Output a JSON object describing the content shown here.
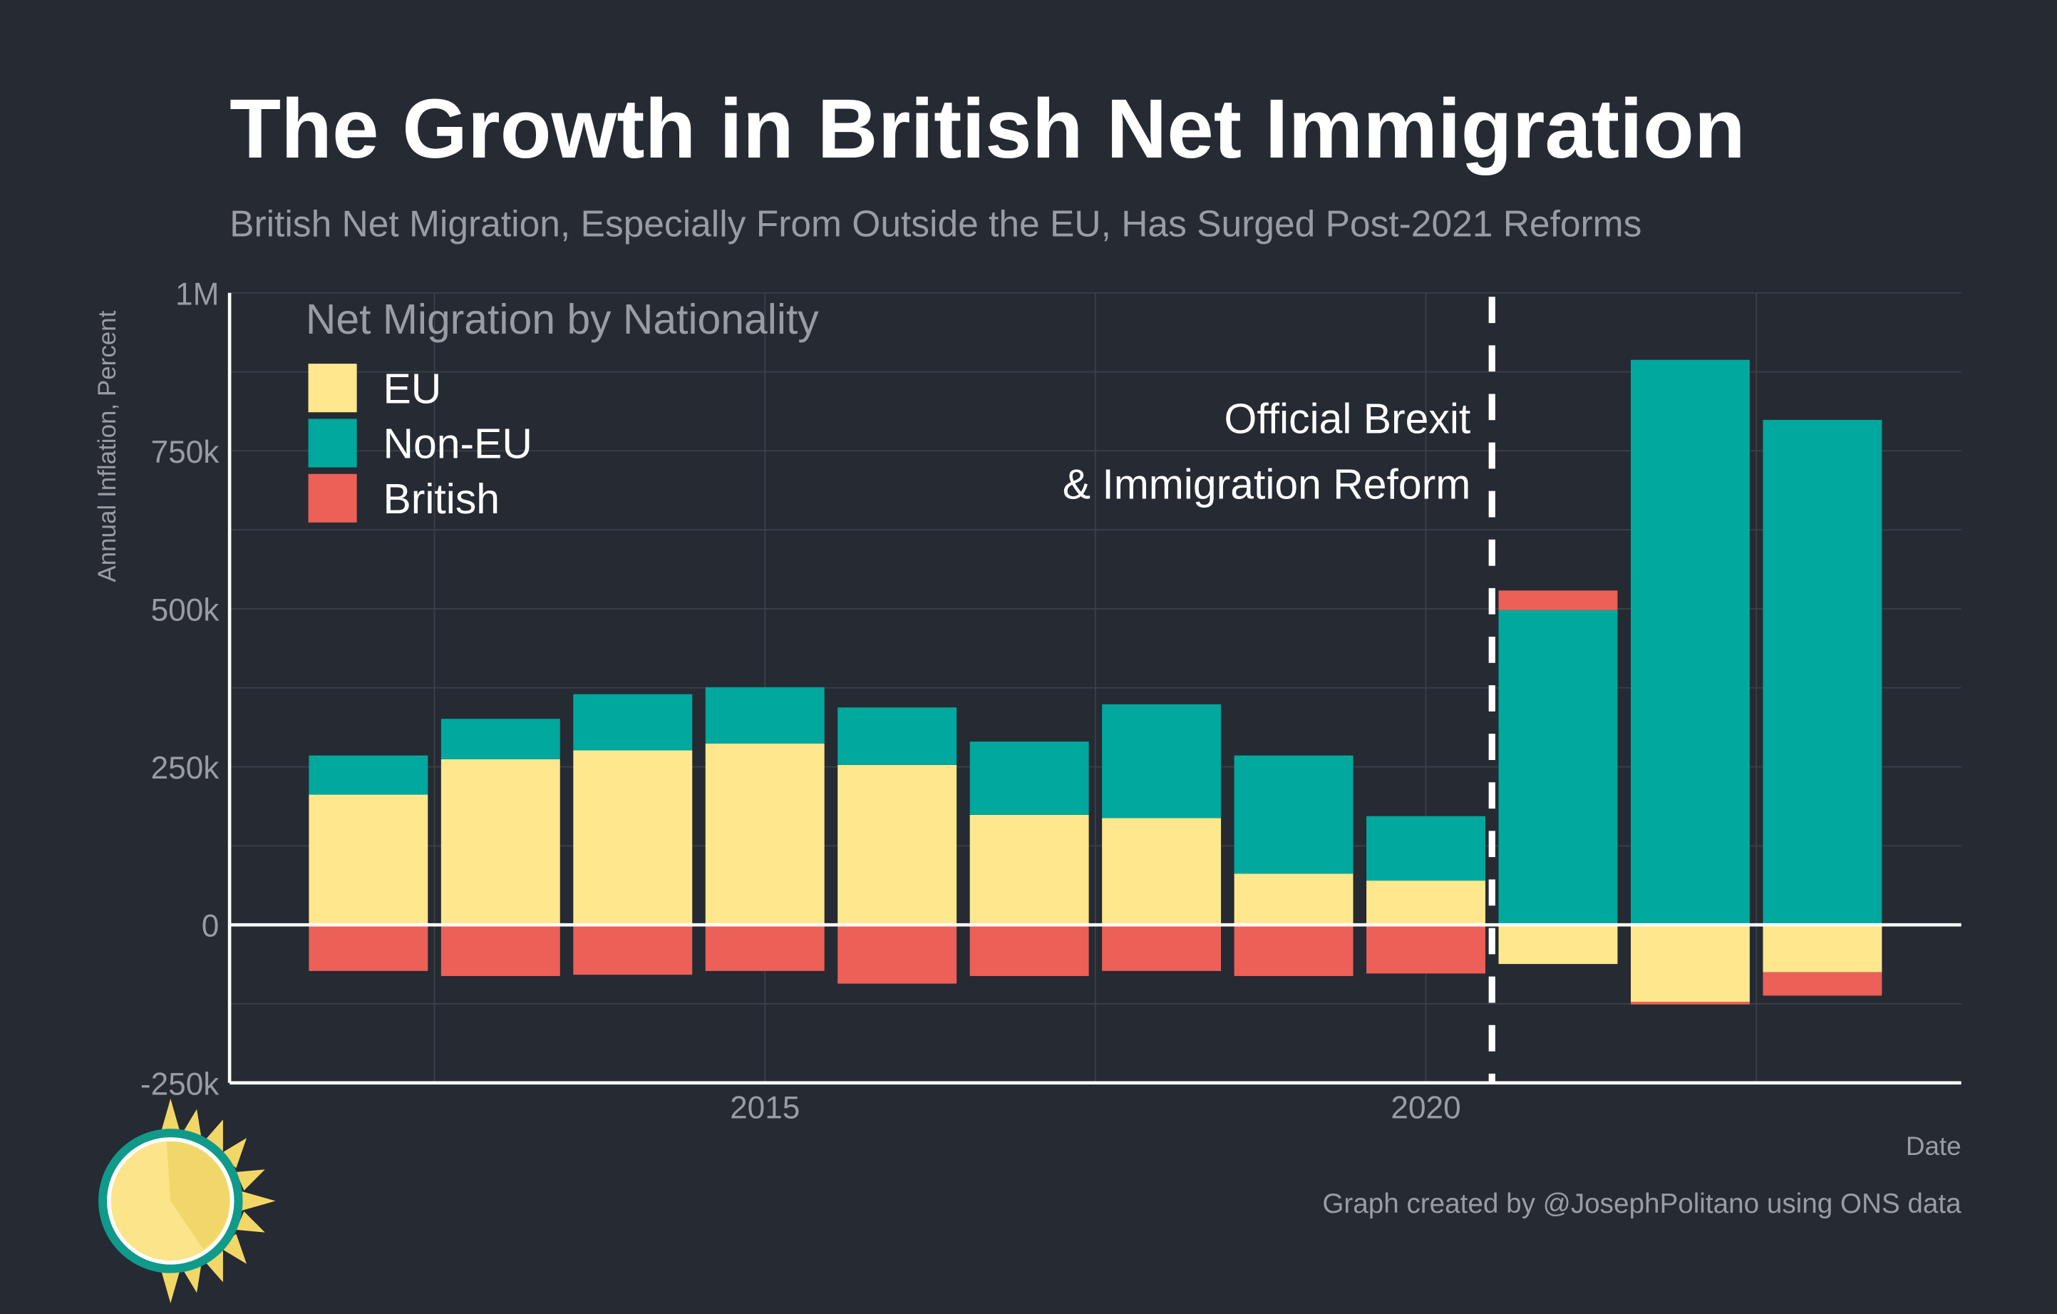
{
  "title": "The Growth in British Net Immigration",
  "subtitle": "British Net Migration, Especially From Outside the EU, Has Surged Post-2021 Reforms",
  "caption": "Graph created by @JosephPolitano using ONS data",
  "colors": {
    "background": "#252a33",
    "EU": "#fee78d",
    "Non-EU": "#00a89d",
    "British": "#ec6058",
    "grid": "#3b3f48",
    "axis": "#ffffff"
  },
  "chart_data": {
    "type": "bar",
    "stacked": true,
    "title": "The Growth in British Net Immigration",
    "subtitle": "British Net Migration, Especially From Outside the EU, Has Surged Post-2021 Reforms",
    "xlabel": "Date",
    "ylabel": "Annual Inflation, Percent",
    "legend_title": "Net Migration by Nationality",
    "legend_position": "top-left",
    "grid": true,
    "categories": [
      2012,
      2013,
      2014,
      2015,
      2016,
      2017,
      2018,
      2019,
      2020,
      2021,
      2022,
      2023
    ],
    "series": [
      {
        "name": "EU",
        "values": [
          206000,
          262000,
          276000,
          287000,
          253000,
          174000,
          169000,
          81000,
          70000,
          -62000,
          -122000,
          -75000
        ]
      },
      {
        "name": "Non-EU",
        "values": [
          62000,
          64000,
          89000,
          89000,
          91000,
          116000,
          180000,
          187000,
          102000,
          498000,
          894000,
          799000
        ]
      },
      {
        "name": "British",
        "values": [
          -73000,
          -81000,
          -79000,
          -73000,
          -93000,
          -81000,
          -73000,
          -81000,
          -77000,
          31000,
          -4000,
          -37000
        ]
      }
    ],
    "xlim": [
      2011,
      2024
    ],
    "ylim": [
      -250000,
      1000000
    ],
    "x_ticks": [
      {
        "value": 2015,
        "label": "2015"
      },
      {
        "value": 2020,
        "label": "2020"
      }
    ],
    "y_ticks": [
      {
        "value": -250000,
        "label": "-250k"
      },
      {
        "value": 0,
        "label": "0"
      },
      {
        "value": 250000,
        "label": "250k"
      },
      {
        "value": 500000,
        "label": "500k"
      },
      {
        "value": 750000,
        "label": "750k"
      },
      {
        "value": 1000000,
        "label": "1M"
      }
    ],
    "annotation": {
      "x": 2020.5,
      "lines": [
        "Official Brexit",
        "& Immigration Reform"
      ],
      "style": "dashed vertical line"
    }
  }
}
